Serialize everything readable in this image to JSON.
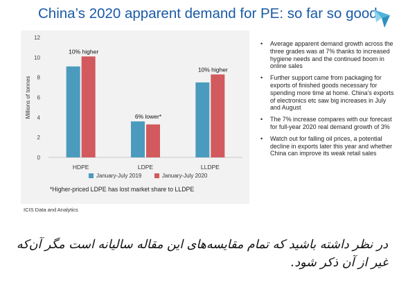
{
  "title": "China’s 2020 apparent demand for PE: so far so good",
  "chart_data": {
    "type": "bar",
    "categories": [
      "HDPE",
      "LDPE",
      "LLDPE"
    ],
    "series": [
      {
        "name": "January-July 2019",
        "values": [
          9.1,
          3.6,
          7.5
        ],
        "color": "#4a9bbd"
      },
      {
        "name": "January-July 2020",
        "values": [
          10.1,
          3.3,
          8.3
        ],
        "color": "#d2595d"
      }
    ],
    "ylabel": "Millions of tonnes",
    "yticks": [
      0,
      2,
      4,
      6,
      8,
      10,
      12
    ],
    "ylim": [
      0,
      12
    ],
    "annotations": [
      "10% higher",
      "6% lower*",
      "10% higher"
    ],
    "legend_position": "bottom",
    "grid": false
  },
  "footnote": "*Higher-priced LDPE has lost market share to LLDPE",
  "source": "ICIS Data and Analytics",
  "bullets": [
    "Average apparent demand growth across the three grades was at 7% thanks to increased hygiene needs and the continued boom in online sales",
    "Further support came from packaging for exports of finished goods necessary for spending more time at home. China’s exports of electronics etc saw big increases in July and August",
    "The 7% increase compares with our forecast for full-year 2020 real demand growth of 3%",
    "Watch out for falling oil prices, a potential decline in exports later this year and whether China can improve its weak retail sales"
  ],
  "caption": "در نظر داشته باشید که تمام مقایسه‌های این مقاله سالیانه است مگر آن‌که غیر از آن ذکر شود.",
  "colors": {
    "title": "#1a5aa6",
    "panel": "#f2f2f2",
    "logo": "#4fb3d9"
  }
}
